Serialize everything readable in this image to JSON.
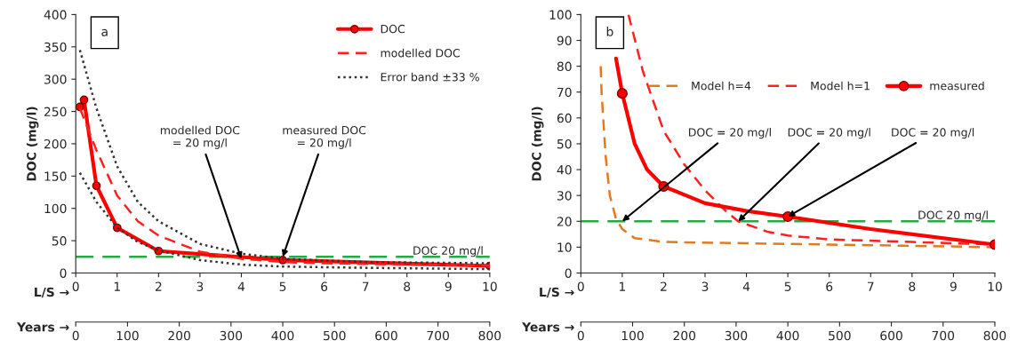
{
  "chart_data": [
    {
      "type": "line",
      "ylabel": "DOC (mg/l)",
      "xlabel": "L/S →",
      "x2label": "Years →",
      "xlim": [
        0,
        10
      ],
      "xticks": [
        0,
        1,
        2,
        3,
        4,
        5,
        6,
        7,
        8,
        9,
        10
      ],
      "x2lim": [
        0,
        800
      ],
      "x2ticks": [
        0,
        100,
        200,
        300,
        400,
        500,
        600,
        700,
        800
      ],
      "ylim": [
        0,
        400
      ],
      "yticks": [
        0,
        50,
        100,
        150,
        200,
        250,
        300,
        350,
        400
      ],
      "legend": "top right",
      "grid": false,
      "series": [
        {
          "name": "DOC",
          "color": "#ff0000",
          "marker": "circle",
          "line_style": "solid",
          "x": [
            0.1,
            0.2,
            0.5,
            1,
            2,
            5,
            10
          ],
          "values": [
            257,
            268,
            135,
            70,
            34,
            20,
            11
          ]
        },
        {
          "name": "modelled DOC",
          "color": "#ff2020",
          "marker": "none",
          "line_style": "dashed",
          "x": [
            0.1,
            0.5,
            1,
            1.5,
            2,
            3,
            4,
            5,
            6,
            8,
            10
          ],
          "values": [
            255,
            190,
            120,
            80,
            58,
            33,
            22,
            17,
            15,
            13,
            12
          ]
        },
        {
          "name": "Error band ±33 %",
          "color": "#333333",
          "marker": "none",
          "line_style": "dotted",
          "x": [
            0.1,
            0.5,
            1,
            1.5,
            2,
            3,
            4,
            5,
            7,
            10
          ],
          "values": [
            345,
            255,
            165,
            110,
            80,
            45,
            30,
            22,
            17,
            15
          ]
        },
        {
          "color": "#333333",
          "marker": "none",
          "line_style": "dotted",
          "x": [
            0.1,
            0.5,
            1,
            1.5,
            2,
            3,
            4,
            5,
            7,
            10
          ],
          "values": [
            155,
            110,
            70,
            48,
            35,
            20,
            13,
            10,
            8,
            6
          ]
        }
      ],
      "ref_lines": [
        {
          "axis": "y",
          "value": 25,
          "label": "DOC 20 mg/l",
          "color": "#22aa44",
          "line_style": "dashed"
        }
      ],
      "annotations": [
        "a",
        {
          "text": "modelled DOC\n= 20 mg/l",
          "x": 4,
          "y": 22
        },
        {
          "text": "measured DOC\n= 20 mg/l",
          "x": 5,
          "y": 25
        }
      ]
    },
    {
      "type": "line",
      "ylabel": "DOC (mg/l)",
      "xlabel": "L/S →",
      "x2label": "Years →",
      "xlim": [
        0,
        10
      ],
      "xticks": [
        0,
        1,
        2,
        3,
        4,
        5,
        6,
        7,
        8,
        9,
        10
      ],
      "x2lim": [
        0,
        800
      ],
      "x2ticks": [
        0,
        100,
        200,
        300,
        400,
        500,
        600,
        700,
        800
      ],
      "ylim": [
        0,
        100
      ],
      "yticks": [
        0,
        10,
        20,
        30,
        40,
        50,
        60,
        70,
        80,
        90,
        100
      ],
      "legend": "top right",
      "grid": false,
      "series": [
        {
          "name": "Model h=4",
          "color": "#e07b20",
          "marker": "none",
          "line_style": "dashed",
          "x": [
            0.48,
            0.5,
            0.6,
            0.7,
            0.85,
            1,
            1.3,
            2,
            4,
            6,
            10
          ],
          "values": [
            80,
            70,
            45,
            30,
            21,
            17,
            13.5,
            12,
            11.5,
            11,
            10
          ]
        },
        {
          "name": "Model h=1",
          "color": "#ff2020",
          "marker": "none",
          "line_style": "dashed",
          "x": [
            1.15,
            1.5,
            2,
            2.5,
            3,
            3.5,
            3.8,
            4.5,
            5,
            6,
            8,
            10
          ],
          "values": [
            100,
            78,
            55,
            42,
            32,
            24,
            20,
            16,
            14.5,
            13,
            12,
            11
          ]
        },
        {
          "color": "#ff0000",
          "marker": "none",
          "line_style": "solid",
          "x": [
            0.85,
            1,
            1.3,
            1.6,
            2,
            3,
            4,
            5,
            7,
            10
          ],
          "values": [
            83,
            69.5,
            50,
            40,
            33.5,
            27,
            24,
            21.8,
            17,
            11
          ]
        },
        {
          "type": "scatter",
          "name": "measured",
          "color": "#ff0000",
          "marker": "circle",
          "line_style": "solid",
          "x": [
            1,
            2,
            5,
            10
          ],
          "values": [
            69.5,
            33.5,
            21.8,
            11
          ]
        }
      ],
      "ref_lines": [
        {
          "axis": "y",
          "value": 20,
          "label": "DOC 20 mg/l",
          "color": "#22aa44",
          "line_style": "dashed"
        }
      ],
      "annotations": [
        "b",
        {
          "text": "DOC = 20 mg/l",
          "x": 1,
          "y": 20
        },
        {
          "text": "DOC = 20 mg/l",
          "x": 3.8,
          "y": 20
        },
        {
          "text": "DOC = 20 mg/l",
          "x": 5,
          "y": 21.8
        }
      ]
    }
  ]
}
